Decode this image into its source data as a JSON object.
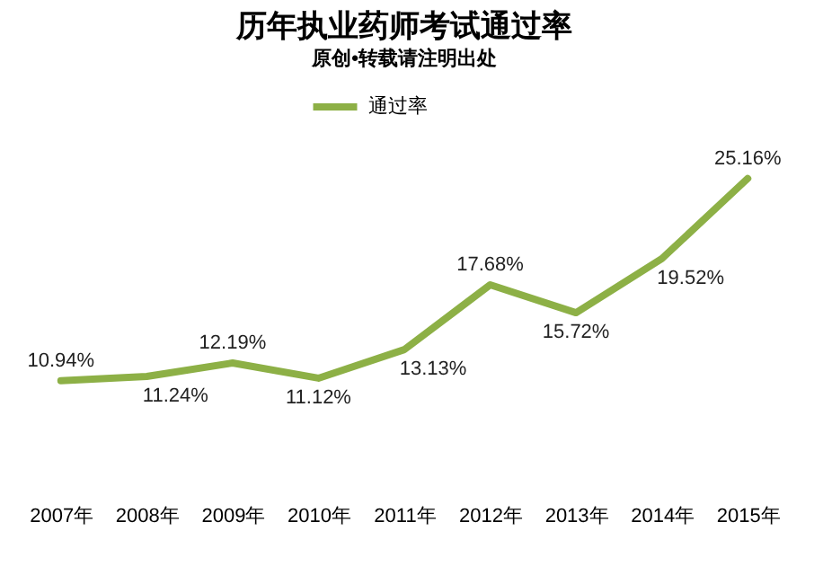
{
  "chart_data": {
    "type": "line",
    "title": "历年执业药师考试通过率",
    "subtitle": "原创•转载请注明出处",
    "categories": [
      "2007年",
      "2008年",
      "2009年",
      "2010年",
      "2011年",
      "2012年",
      "2013年",
      "2014年",
      "2015年"
    ],
    "series": [
      {
        "name": "通过率",
        "color": "#8db046",
        "values": [
          10.94,
          11.24,
          12.19,
          11.12,
          13.13,
          17.68,
          15.72,
          19.52,
          25.16
        ],
        "value_labels": [
          "10.94%",
          "11.24%",
          "12.19%",
          "11.12%",
          "13.13%",
          "17.68%",
          "15.72%",
          "19.52%",
          "25.16%"
        ]
      }
    ],
    "legend": "top",
    "grid": false,
    "marker": "none",
    "line_style": "solid"
  }
}
